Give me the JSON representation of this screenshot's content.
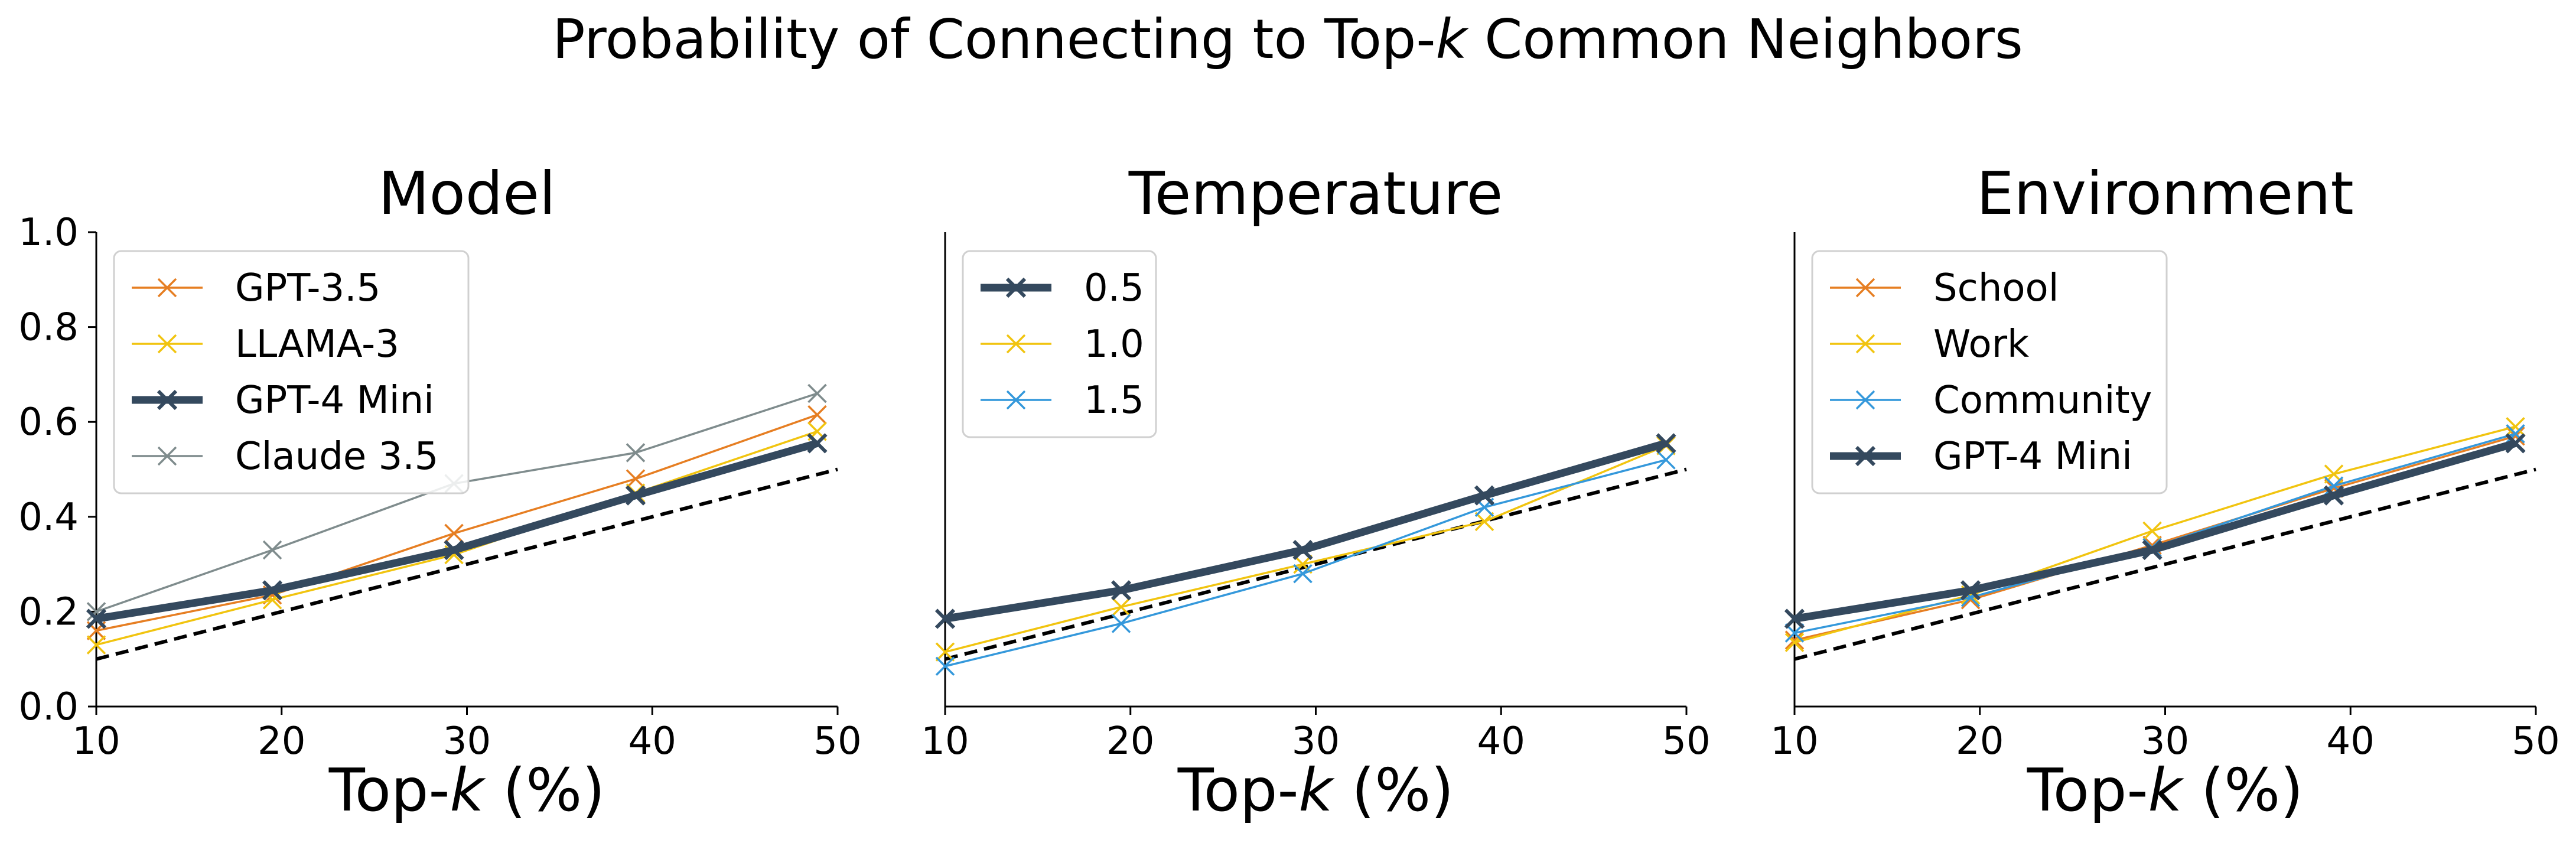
{
  "figure": {
    "suptitle": "Probability of Connecting to Top-k Common Neighbors"
  },
  "chart_data": [
    {
      "type": "line",
      "title": "Model",
      "xlabel": "Top-k (%)",
      "ylabel": "",
      "xlim": [
        10,
        50
      ],
      "ylim": [
        0.0,
        1.0
      ],
      "xticks": [
        "10",
        "20",
        "30",
        "40",
        "50"
      ],
      "yticks": [
        "0.0",
        "0.2",
        "0.4",
        "0.6",
        "0.8",
        "1.0"
      ],
      "grid": false,
      "legend": "top-left",
      "x": [
        10,
        19.5,
        29.3,
        39.1,
        48.9
      ],
      "series": [
        {
          "name": "GPT-3.5",
          "color": "#e67e22",
          "values": [
            0.16,
            0.235,
            0.365,
            0.48,
            0.615
          ]
        },
        {
          "name": "LLAMA-3",
          "color": "#f1c40f",
          "values": [
            0.13,
            0.225,
            0.32,
            0.45,
            0.58
          ]
        },
        {
          "name": "GPT-4 Mini",
          "color": "#34495e",
          "bold": true,
          "values": [
            0.185,
            0.245,
            0.33,
            0.445,
            0.555
          ]
        },
        {
          "name": "Claude 3.5",
          "color": "#7f8c8d",
          "values": [
            0.2,
            0.33,
            0.47,
            0.535,
            0.66
          ]
        }
      ],
      "reference": {
        "style": "dashed",
        "color": "#000000",
        "x": [
          10,
          50
        ],
        "values": [
          0.1,
          0.5
        ]
      }
    },
    {
      "type": "line",
      "title": "Temperature",
      "xlabel": "Top-k (%)",
      "ylabel": "",
      "xlim": [
        10,
        50
      ],
      "ylim": [
        0.0,
        1.0
      ],
      "xticks": [
        "10",
        "20",
        "30",
        "40",
        "50"
      ],
      "yticks": [],
      "grid": false,
      "legend": "top-left",
      "x": [
        10,
        19.5,
        29.3,
        39.1,
        48.9
      ],
      "series": [
        {
          "name": "0.5",
          "color": "#34495e",
          "bold": true,
          "values": [
            0.185,
            0.245,
            0.33,
            0.445,
            0.555
          ]
        },
        {
          "name": "1.0",
          "color": "#f1c40f",
          "values": [
            0.115,
            0.21,
            0.3,
            0.39,
            0.55
          ]
        },
        {
          "name": "1.5",
          "color": "#3498db",
          "values": [
            0.085,
            0.175,
            0.28,
            0.42,
            0.52
          ]
        }
      ],
      "reference": {
        "style": "dashed",
        "color": "#000000",
        "x": [
          10,
          50
        ],
        "values": [
          0.1,
          0.5
        ]
      }
    },
    {
      "type": "line",
      "title": "Environment",
      "xlabel": "Top-k (%)",
      "ylabel": "",
      "xlim": [
        10,
        50
      ],
      "ylim": [
        0.0,
        1.0
      ],
      "xticks": [
        "10",
        "20",
        "30",
        "40",
        "50"
      ],
      "yticks": [],
      "grid": false,
      "legend": "top-left",
      "x": [
        10,
        19.5,
        29.3,
        39.1,
        48.9
      ],
      "series": [
        {
          "name": "School",
          "color": "#e67e22",
          "values": [
            0.14,
            0.225,
            0.34,
            0.46,
            0.57
          ]
        },
        {
          "name": "Work",
          "color": "#f1c40f",
          "values": [
            0.135,
            0.235,
            0.37,
            0.49,
            0.59
          ]
        },
        {
          "name": "Community",
          "color": "#3498db",
          "values": [
            0.155,
            0.23,
            0.335,
            0.465,
            0.575
          ]
        },
        {
          "name": "GPT-4 Mini",
          "color": "#34495e",
          "bold": true,
          "values": [
            0.185,
            0.245,
            0.33,
            0.445,
            0.555
          ]
        }
      ],
      "reference": {
        "style": "dashed",
        "color": "#000000",
        "x": [
          10,
          50
        ],
        "values": [
          0.1,
          0.5
        ]
      }
    }
  ]
}
